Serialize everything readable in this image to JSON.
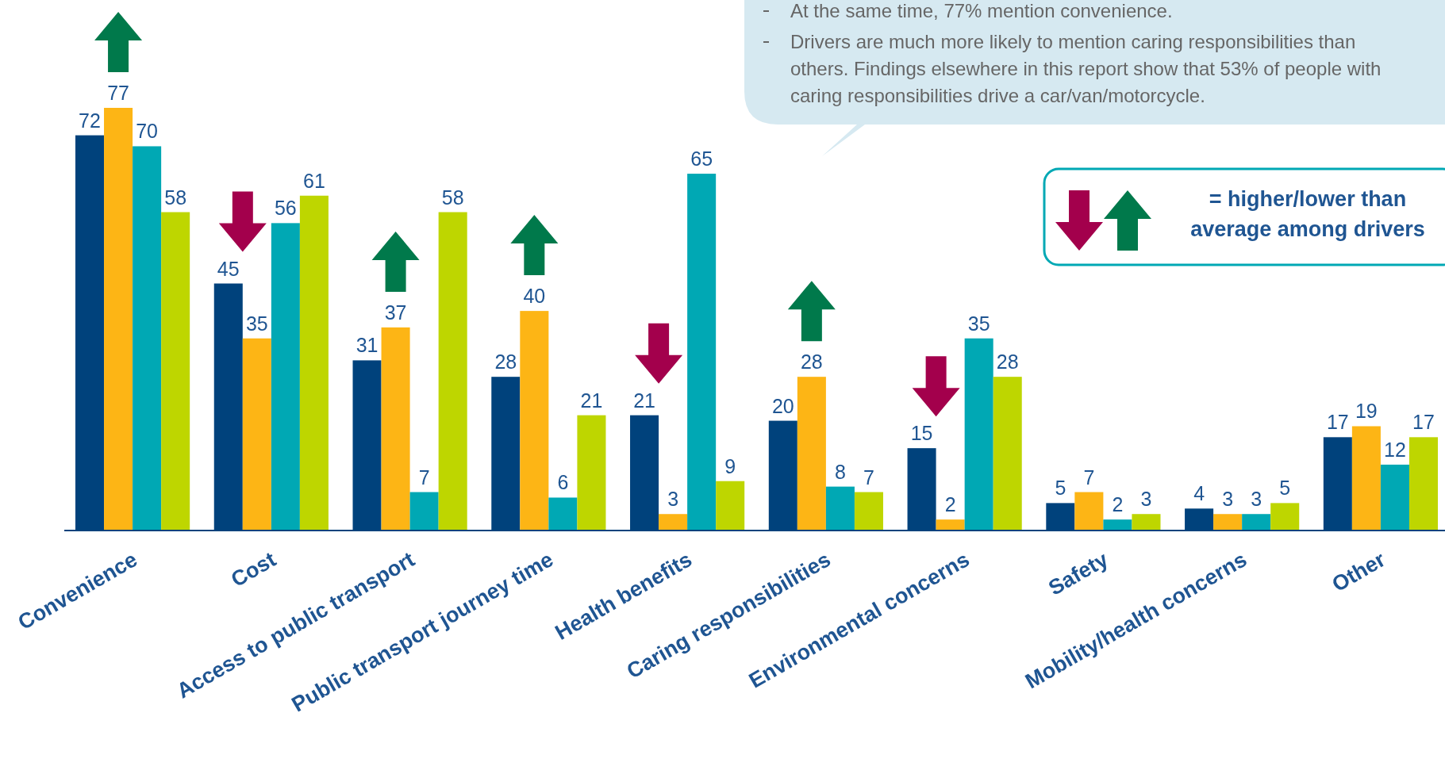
{
  "chart_data": {
    "type": "bar",
    "categories": [
      "Convenience",
      "Cost",
      "Access to public transport",
      "Public transport journey time",
      "Health benefits",
      "Caring responsibilities",
      "Environmental concerns",
      "Safety",
      "Mobility/health concerns",
      "Other"
    ],
    "series": [
      {
        "color": "#00427c",
        "values": [
          72,
          45,
          31,
          28,
          21,
          20,
          15,
          5,
          4,
          17
        ]
      },
      {
        "color": "#fdb515",
        "values": [
          77,
          35,
          37,
          40,
          3,
          28,
          2,
          7,
          3,
          19
        ]
      },
      {
        "color": "#00a8b4",
        "values": [
          70,
          56,
          7,
          6,
          65,
          8,
          35,
          2,
          3,
          12
        ]
      },
      {
        "color": "#bed600",
        "values": [
          58,
          61,
          58,
          21,
          9,
          7,
          28,
          3,
          5,
          17
        ]
      }
    ],
    "data_labels": true,
    "annotations": [
      "At the same time, 77% mention convenience.",
      "Drivers are much more likely to mention caring responsibilities than others. Findings elsewhere in this report show that 53% of people with caring responsibilities drive a car/van/motorcycle.",
      "= higher/lower than average among drivers"
    ]
  }
}
